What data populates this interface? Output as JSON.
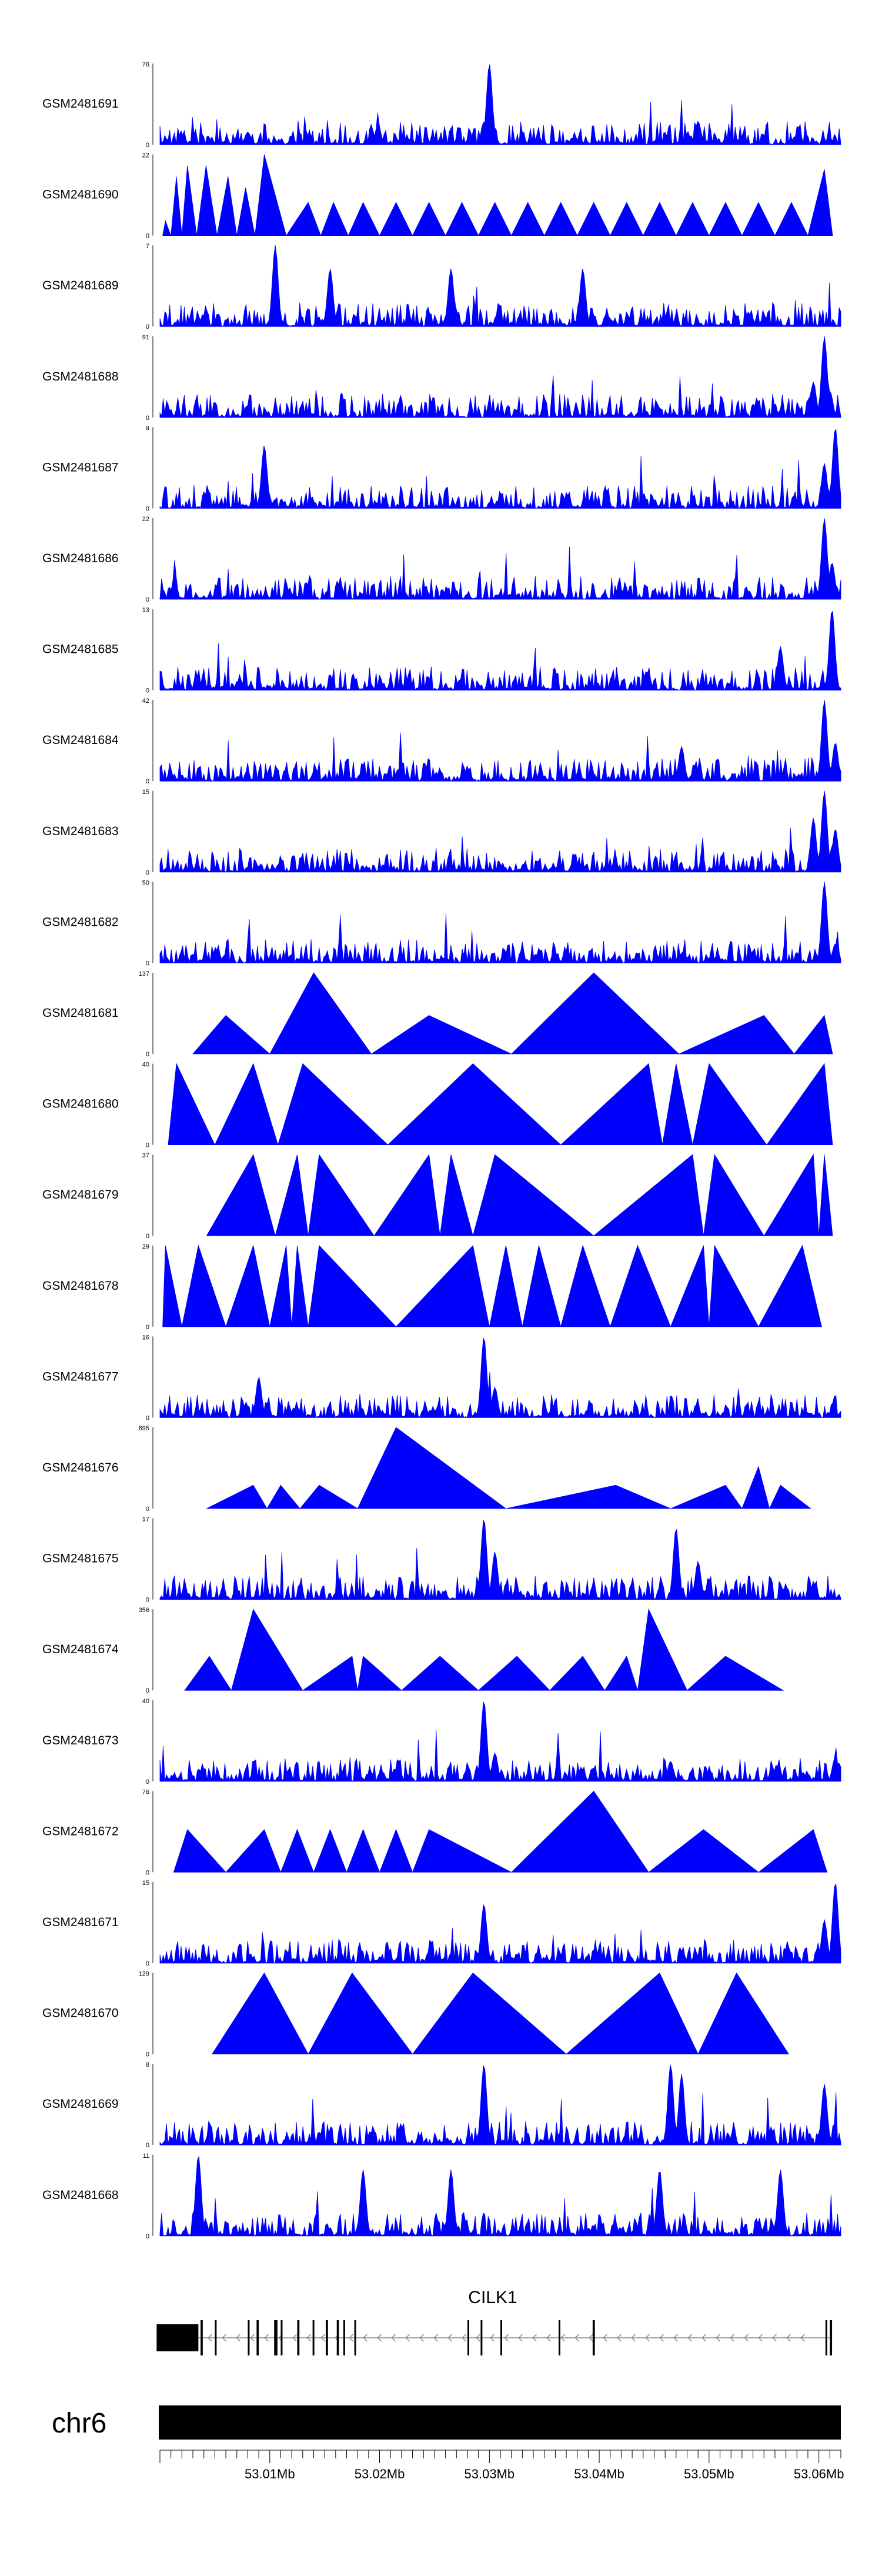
{
  "chart_data": {
    "type": "area",
    "x_unit": "Mb",
    "xlim": [
      53.0,
      53.062
    ],
    "tracks": [
      {
        "name": "GSM2481691",
        "ymax": 76,
        "shape": "noise",
        "peaks": [
          [
            53.03,
            76
          ],
          [
            53.049,
            22
          ],
          [
            53.008,
            12
          ],
          [
            53.061,
            6
          ]
        ],
        "seed": 11
      },
      {
        "name": "GSM2481690",
        "ymax": 22,
        "shape": "triangles",
        "peaks": [
          [
            53.0005,
            4
          ],
          [
            53.0015,
            16
          ],
          [
            53.0025,
            19
          ],
          [
            53.0042,
            19
          ],
          [
            53.0062,
            16
          ],
          [
            53.0078,
            13
          ],
          [
            53.0095,
            22
          ],
          [
            53.0135,
            9
          ],
          [
            53.0158,
            9
          ],
          [
            53.0185,
            9
          ],
          [
            53.0215,
            9
          ],
          [
            53.0245,
            9
          ],
          [
            53.0275,
            9
          ],
          [
            53.0305,
            9
          ],
          [
            53.0335,
            9
          ],
          [
            53.0365,
            9
          ],
          [
            53.0395,
            9
          ],
          [
            53.0425,
            9
          ],
          [
            53.0455,
            9
          ],
          [
            53.0485,
            9
          ],
          [
            53.0515,
            9
          ],
          [
            53.0545,
            9
          ],
          [
            53.0575,
            9
          ],
          [
            53.0605,
            18
          ]
        ],
        "seed": 12
      },
      {
        "name": "GSM2481689",
        "ymax": 7,
        "shape": "noise",
        "peaks": [
          [
            53.0105,
            7
          ],
          [
            53.0155,
            5
          ],
          [
            53.0265,
            5
          ],
          [
            53.0385,
            5
          ]
        ],
        "seed": 13
      },
      {
        "name": "GSM2481688",
        "ymax": 91,
        "shape": "noise",
        "peaks": [
          [
            53.0605,
            91
          ],
          [
            53.0595,
            40
          ],
          [
            53.061,
            30
          ]
        ],
        "seed": 14
      },
      {
        "name": "GSM2481687",
        "ymax": 9,
        "shape": "noise",
        "peaks": [
          [
            53.0615,
            9
          ],
          [
            53.0095,
            7
          ],
          [
            53.0605,
            5
          ]
        ],
        "seed": 15
      },
      {
        "name": "GSM2481686",
        "ymax": 22,
        "shape": "noise",
        "peaks": [
          [
            53.0605,
            22
          ],
          [
            53.0612,
            10
          ]
        ],
        "seed": 16
      },
      {
        "name": "GSM2481685",
        "ymax": 13,
        "shape": "noise",
        "peaks": [
          [
            53.0612,
            13
          ],
          [
            53.0565,
            7
          ]
        ],
        "seed": 17
      },
      {
        "name": "GSM2481684",
        "ymax": 42,
        "shape": "noise",
        "peaks": [
          [
            53.0605,
            42
          ],
          [
            53.0615,
            20
          ],
          [
            53.0475,
            18
          ]
        ],
        "seed": 18
      },
      {
        "name": "GSM2481683",
        "ymax": 15,
        "shape": "noise",
        "peaks": [
          [
            53.0605,
            15
          ],
          [
            53.0595,
            10
          ],
          [
            53.0615,
            8
          ]
        ],
        "seed": 19
      },
      {
        "name": "GSM2481682",
        "ymax": 50,
        "shape": "noise",
        "peaks": [
          [
            53.0605,
            50
          ],
          [
            53.0615,
            12
          ],
          [
            53.0475,
            6
          ]
        ],
        "seed": 20
      },
      {
        "name": "GSM2481681",
        "ymax": 137,
        "shape": "triangles",
        "peaks": [
          [
            53.006,
            65
          ],
          [
            53.014,
            137
          ],
          [
            53.0245,
            65
          ],
          [
            53.0395,
            137
          ],
          [
            53.055,
            65
          ],
          [
            53.0605,
            65
          ]
        ],
        "seed": 21
      },
      {
        "name": "GSM2481680",
        "ymax": 40,
        "shape": "triangles",
        "peaks": [
          [
            53.0015,
            40
          ],
          [
            53.0085,
            40
          ],
          [
            53.013,
            40
          ],
          [
            53.0285,
            40
          ],
          [
            53.0445,
            40
          ],
          [
            53.047,
            40
          ],
          [
            53.05,
            40
          ],
          [
            53.0605,
            40
          ]
        ],
        "seed": 22
      },
      {
        "name": "GSM2481679",
        "ymax": 37,
        "shape": "triangles",
        "peaks": [
          [
            53.0085,
            37
          ],
          [
            53.0125,
            37
          ],
          [
            53.0145,
            37
          ],
          [
            53.0245,
            37
          ],
          [
            53.0265,
            37
          ],
          [
            53.0305,
            37
          ],
          [
            53.0485,
            37
          ],
          [
            53.0505,
            37
          ],
          [
            53.0595,
            37
          ],
          [
            53.0605,
            37
          ]
        ],
        "seed": 23
      },
      {
        "name": "GSM2481678",
        "ymax": 29,
        "shape": "triangles",
        "peaks": [
          [
            53.0005,
            29
          ],
          [
            53.0035,
            29
          ],
          [
            53.0085,
            29
          ],
          [
            53.0115,
            29
          ],
          [
            53.0125,
            29
          ],
          [
            53.0145,
            29
          ],
          [
            53.0285,
            29
          ],
          [
            53.0315,
            29
          ],
          [
            53.0345,
            29
          ],
          [
            53.0385,
            29
          ],
          [
            53.0435,
            29
          ],
          [
            53.0495,
            29
          ],
          [
            53.0505,
            29
          ],
          [
            53.0585,
            29
          ]
        ],
        "seed": 24
      },
      {
        "name": "GSM2481677",
        "ymax": 16,
        "shape": "noise",
        "peaks": [
          [
            53.0295,
            16
          ],
          [
            53.009,
            8
          ],
          [
            53.0305,
            6
          ]
        ],
        "seed": 25
      },
      {
        "name": "GSM2481676",
        "ymax": 695,
        "shape": "triangles",
        "peaks": [
          [
            53.0085,
            200
          ],
          [
            53.011,
            200
          ],
          [
            53.0145,
            200
          ],
          [
            53.0215,
            695
          ],
          [
            53.0415,
            200
          ],
          [
            53.0515,
            200
          ],
          [
            53.0545,
            360
          ],
          [
            53.0565,
            200
          ]
        ],
        "seed": 26
      },
      {
        "name": "GSM2481675",
        "ymax": 17,
        "shape": "noise",
        "peaks": [
          [
            53.0295,
            17
          ],
          [
            53.047,
            15
          ],
          [
            53.0305,
            10
          ],
          [
            53.049,
            8
          ]
        ],
        "seed": 27
      },
      {
        "name": "GSM2481674",
        "ymax": 356,
        "shape": "triangles",
        "peaks": [
          [
            53.0045,
            150
          ],
          [
            53.0085,
            356
          ],
          [
            53.0175,
            150
          ],
          [
            53.0185,
            150
          ],
          [
            53.0255,
            150
          ],
          [
            53.0325,
            150
          ],
          [
            53.0385,
            150
          ],
          [
            53.0425,
            150
          ],
          [
            53.0445,
            356
          ],
          [
            53.0515,
            150
          ]
        ],
        "seed": 28
      },
      {
        "name": "GSM2481673",
        "ymax": 40,
        "shape": "noise",
        "peaks": [
          [
            53.0295,
            40
          ],
          [
            53.0305,
            14
          ],
          [
            53.0465,
            10
          ],
          [
            53.0615,
            12
          ]
        ],
        "seed": 29
      },
      {
        "name": "GSM2481672",
        "ymax": 76,
        "shape": "triangles",
        "peaks": [
          [
            53.0025,
            40
          ],
          [
            53.0095,
            40
          ],
          [
            53.0125,
            40
          ],
          [
            53.0155,
            40
          ],
          [
            53.0185,
            40
          ],
          [
            53.0215,
            40
          ],
          [
            53.0245,
            40
          ],
          [
            53.0395,
            76
          ],
          [
            53.0495,
            40
          ],
          [
            53.0595,
            40
          ]
        ],
        "seed": 30
      },
      {
        "name": "GSM2481671",
        "ymax": 15,
        "shape": "noise",
        "peaks": [
          [
            53.0615,
            15
          ],
          [
            53.0295,
            11
          ],
          [
            53.0605,
            8
          ]
        ],
        "seed": 31
      },
      {
        "name": "GSM2481670",
        "ymax": 129,
        "shape": "triangles",
        "peaks": [
          [
            53.0095,
            129
          ],
          [
            53.0175,
            129
          ],
          [
            53.0285,
            129
          ],
          [
            53.0455,
            129
          ],
          [
            53.0525,
            129
          ]
        ],
        "seed": 32
      },
      {
        "name": "GSM2481669",
        "ymax": 8,
        "shape": "noise",
        "peaks": [
          [
            53.0295,
            8
          ],
          [
            53.0465,
            8
          ],
          [
            53.0475,
            7
          ],
          [
            53.0605,
            6
          ]
        ],
        "seed": 33
      },
      {
        "name": "GSM2481668",
        "ymax": 11,
        "shape": "noise",
        "peaks": [
          [
            53.0035,
            11
          ],
          [
            53.0185,
            9
          ],
          [
            53.0265,
            9
          ],
          [
            53.0455,
            9
          ],
          [
            53.0565,
            9
          ]
        ],
        "seed": 34
      }
    ],
    "gene": {
      "name": "CILK1",
      "strand": "-",
      "start": 52.9997,
      "end": 53.0612,
      "exons": [
        [
          52.9997,
          53.0035
        ],
        [
          53.0037,
          53.0039
        ],
        [
          53.005,
          53.0051
        ],
        [
          53.008,
          53.0081
        ],
        [
          53.0088,
          53.009
        ],
        [
          53.0104,
          53.0107
        ],
        [
          53.011,
          53.0111
        ],
        [
          53.0125,
          53.0127
        ],
        [
          53.0139,
          53.014
        ],
        [
          53.0151,
          53.0153
        ],
        [
          53.0161,
          53.0163
        ],
        [
          53.0167,
          53.0168
        ],
        [
          53.0177,
          53.0178
        ],
        [
          53.028,
          53.0281
        ],
        [
          53.0292,
          53.0293
        ],
        [
          53.031,
          53.0311
        ],
        [
          53.0363,
          53.0364
        ],
        [
          53.0394,
          53.0396
        ],
        [
          53.0606,
          53.0607
        ],
        [
          53.061,
          53.0612
        ]
      ]
    },
    "chromosome": "chr6",
    "xtick_labels": [
      "53.01Mb",
      "53.02Mb",
      "53.03Mb",
      "53.04Mb",
      "53.05Mb",
      "53.06Mb"
    ],
    "xtick_values": [
      53.01,
      53.02,
      53.03,
      53.04,
      53.05,
      53.06
    ],
    "fill_color": "#0000ff",
    "axis_color": "#000000"
  }
}
